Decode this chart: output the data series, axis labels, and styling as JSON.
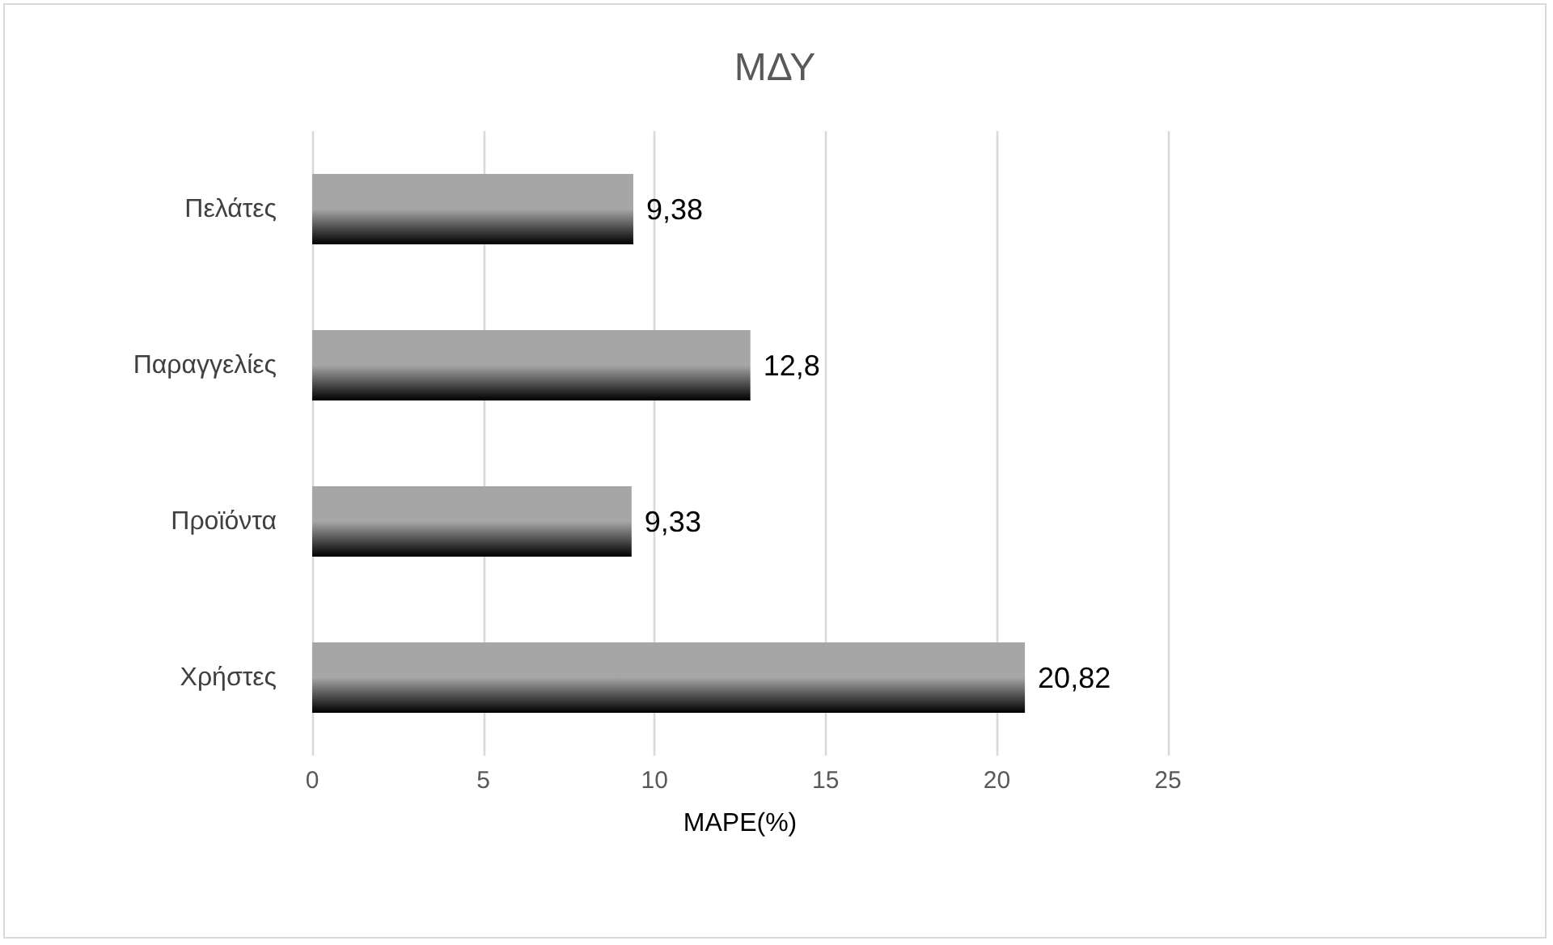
{
  "chart_data": {
    "type": "bar",
    "orientation": "horizontal",
    "title": "ΜΔΥ",
    "xlabel": "MAPE(%)",
    "categories": [
      "Πελάτες",
      "Παραγγελίες",
      "Προϊόντα",
      "Χρήστες"
    ],
    "values": [
      9.38,
      12.8,
      9.33,
      20.82
    ],
    "value_labels": [
      "9,38",
      "12,8",
      "9,33",
      "20,82"
    ],
    "color": "#a6a6a6",
    "xlim": [
      0,
      25
    ],
    "xticks": [
      0,
      5,
      10,
      15,
      20,
      25
    ],
    "grid": "x"
  }
}
